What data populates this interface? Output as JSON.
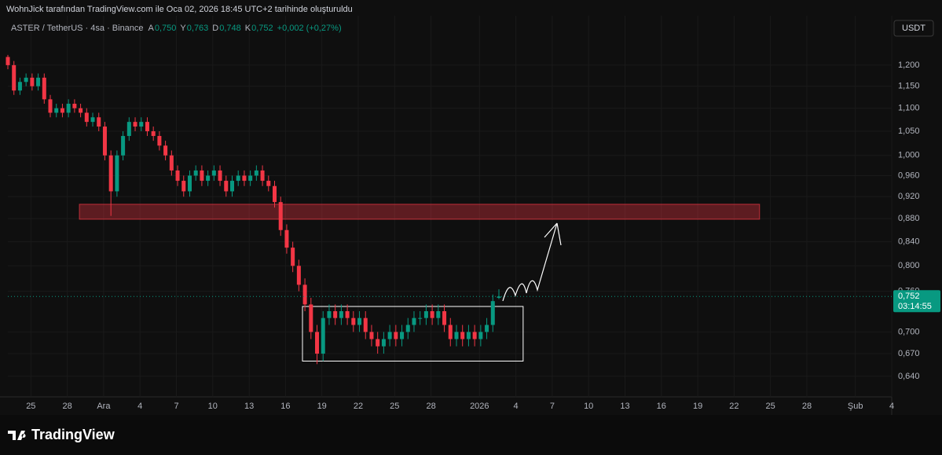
{
  "header": {
    "credit": "WohnJick tarafından TradingView.com ile Oca 02, 2026 18:45 UTC+2 tarihinde oluşturuldu",
    "symbol": "ASTER / TetherUS · 4sa · Binance",
    "ohlc": [
      {
        "key": "A",
        "value": "0,750"
      },
      {
        "key": "Y",
        "value": "0,763"
      },
      {
        "key": "D",
        "value": "0,748"
      },
      {
        "key": "K",
        "value": "0,752"
      }
    ],
    "change": "+0,002 (+0,27%)",
    "currency": "USDT",
    "price_label": "0,752",
    "countdown": "03:14:55",
    "brand": "TradingView"
  },
  "chart_data": {
    "type": "candlestick",
    "log_scale": true,
    "grid": true,
    "up_color": "#089981",
    "down_color": "#f23645",
    "x": [
      -1.9,
      -1.4,
      -0.9,
      -0.4,
      0.1,
      0.6,
      1.1,
      1.6,
      2.1,
      2.6,
      3.1,
      3.6,
      4.1,
      4.6,
      5.1,
      5.6,
      6.1,
      6.6,
      7.1,
      7.6,
      8.1,
      8.6,
      9.1,
      9.6,
      10.1,
      10.6,
      11.1,
      11.6,
      12.1,
      12.6,
      13.1,
      13.6,
      14.1,
      14.6,
      15.1,
      15.6,
      16.1,
      16.6,
      17.1,
      17.6,
      18.1,
      18.6,
      19.1,
      19.6,
      20.1,
      20.6,
      21.1,
      21.6,
      22.1,
      22.6,
      23.1,
      23.6,
      24.1,
      24.6,
      25.1,
      25.6,
      26.1,
      26.6,
      27.1,
      27.6,
      28.1,
      28.6,
      29.1,
      29.6,
      30.1,
      30.6,
      31.1,
      31.6,
      32.1,
      32.6,
      33.1,
      33.6,
      34.1,
      34.6,
      35.1,
      35.6,
      36.1,
      36.6,
      37.1,
      37.6,
      38.1,
      38.6
    ],
    "open": [
      1.22,
      1.2,
      1.14,
      1.16,
      1.17,
      1.15,
      1.17,
      1.12,
      1.09,
      1.1,
      1.09,
      1.11,
      1.1,
      1.09,
      1.07,
      1.08,
      1.06,
      1.0,
      0.93,
      1.0,
      1.04,
      1.07,
      1.06,
      1.07,
      1.05,
      1.04,
      1.02,
      1.0,
      0.97,
      0.95,
      0.93,
      0.96,
      0.97,
      0.95,
      0.96,
      0.97,
      0.95,
      0.93,
      0.95,
      0.96,
      0.95,
      0.96,
      0.97,
      0.95,
      0.94,
      0.91,
      0.86,
      0.83,
      0.8,
      0.77,
      0.74,
      0.7,
      0.67,
      0.72,
      0.73,
      0.72,
      0.73,
      0.72,
      0.71,
      0.72,
      0.7,
      0.69,
      0.68,
      0.69,
      0.7,
      0.69,
      0.7,
      0.71,
      0.72,
      0.72,
      0.73,
      0.72,
      0.73,
      0.71,
      0.69,
      0.7,
      0.69,
      0.7,
      0.69,
      0.7,
      0.71,
      0.75
    ],
    "high": [
      1.225,
      1.21,
      1.17,
      1.18,
      1.18,
      1.18,
      1.18,
      1.13,
      1.11,
      1.11,
      1.12,
      1.12,
      1.11,
      1.1,
      1.09,
      1.09,
      1.07,
      1.01,
      1.01,
      1.05,
      1.08,
      1.08,
      1.08,
      1.08,
      1.06,
      1.05,
      1.03,
      1.01,
      0.98,
      0.96,
      0.97,
      0.98,
      0.98,
      0.97,
      0.98,
      0.98,
      0.96,
      0.96,
      0.97,
      0.97,
      0.97,
      0.98,
      0.98,
      0.96,
      0.95,
      0.92,
      0.87,
      0.84,
      0.81,
      0.78,
      0.75,
      0.71,
      0.73,
      0.74,
      0.74,
      0.74,
      0.74,
      0.73,
      0.73,
      0.73,
      0.71,
      0.7,
      0.7,
      0.71,
      0.71,
      0.71,
      0.72,
      0.73,
      0.73,
      0.74,
      0.74,
      0.74,
      0.74,
      0.72,
      0.71,
      0.71,
      0.71,
      0.71,
      0.71,
      0.72,
      0.755,
      0.763
    ],
    "low": [
      1.19,
      1.13,
      1.13,
      1.15,
      1.14,
      1.14,
      1.11,
      1.08,
      1.08,
      1.08,
      1.08,
      1.09,
      1.08,
      1.06,
      1.06,
      1.05,
      0.99,
      0.885,
      0.92,
      0.99,
      1.03,
      1.05,
      1.05,
      1.04,
      1.03,
      1.01,
      0.99,
      0.96,
      0.94,
      0.92,
      0.92,
      0.95,
      0.94,
      0.94,
      0.95,
      0.94,
      0.92,
      0.92,
      0.94,
      0.94,
      0.94,
      0.95,
      0.94,
      0.93,
      0.9,
      0.85,
      0.82,
      0.79,
      0.76,
      0.73,
      0.69,
      0.656,
      0.66,
      0.71,
      0.71,
      0.71,
      0.71,
      0.7,
      0.7,
      0.69,
      0.68,
      0.67,
      0.67,
      0.68,
      0.68,
      0.68,
      0.69,
      0.7,
      0.71,
      0.71,
      0.71,
      0.71,
      0.7,
      0.68,
      0.68,
      0.68,
      0.68,
      0.68,
      0.68,
      0.69,
      0.7,
      0.748
    ],
    "close": [
      1.2,
      1.14,
      1.16,
      1.17,
      1.15,
      1.17,
      1.12,
      1.09,
      1.1,
      1.09,
      1.11,
      1.1,
      1.09,
      1.07,
      1.08,
      1.06,
      1.0,
      0.93,
      1.0,
      1.04,
      1.07,
      1.06,
      1.07,
      1.05,
      1.04,
      1.02,
      1.0,
      0.97,
      0.95,
      0.93,
      0.96,
      0.97,
      0.95,
      0.96,
      0.97,
      0.95,
      0.93,
      0.95,
      0.96,
      0.95,
      0.96,
      0.97,
      0.95,
      0.94,
      0.91,
      0.86,
      0.83,
      0.8,
      0.77,
      0.74,
      0.7,
      0.67,
      0.72,
      0.73,
      0.72,
      0.73,
      0.72,
      0.71,
      0.72,
      0.7,
      0.69,
      0.68,
      0.69,
      0.7,
      0.69,
      0.7,
      0.71,
      0.72,
      0.72,
      0.73,
      0.72,
      0.73,
      0.71,
      0.69,
      0.7,
      0.69,
      0.7,
      0.69,
      0.7,
      0.71,
      0.745,
      0.752
    ],
    "last_price": 0.752,
    "zones": [
      {
        "x": [
          4.0,
          60.1
        ],
        "y": [
          0.879,
          0.906
        ],
        "color": "#f23645"
      },
      {
        "x": [
          22.4,
          40.6
        ],
        "y": [
          0.66,
          0.737
        ],
        "color": "#ffffff"
      }
    ],
    "xlim": [
      -1.9,
      71.0
    ],
    "ylim": [
      0.614,
      1.326
    ],
    "xticks": [
      {
        "value": 0,
        "label": "25"
      },
      {
        "value": 3,
        "label": "28"
      },
      {
        "value": 6,
        "label": "Ara"
      },
      {
        "value": 9,
        "label": "4"
      },
      {
        "value": 12,
        "label": "7"
      },
      {
        "value": 15,
        "label": "10"
      },
      {
        "value": 18,
        "label": "13"
      },
      {
        "value": 21,
        "label": "16"
      },
      {
        "value": 24,
        "label": "19"
      },
      {
        "value": 27,
        "label": "22"
      },
      {
        "value": 30,
        "label": "25"
      },
      {
        "value": 33,
        "label": "28"
      },
      {
        "value": 37,
        "label": "2026"
      },
      {
        "value": 40,
        "label": "4"
      },
      {
        "value": 43,
        "label": "7"
      },
      {
        "value": 46,
        "label": "10"
      },
      {
        "value": 49,
        "label": "13"
      },
      {
        "value": 52,
        "label": "16"
      },
      {
        "value": 55,
        "label": "19"
      },
      {
        "value": 58,
        "label": "22"
      },
      {
        "value": 61,
        "label": "25"
      },
      {
        "value": 64,
        "label": "28"
      },
      {
        "value": 68,
        "label": "Şub"
      },
      {
        "value": 71,
        "label": "4"
      }
    ],
    "yticks": [
      {
        "value": 1.2,
        "label": "1,200"
      },
      {
        "value": 1.15,
        "label": "1,150"
      },
      {
        "value": 1.1,
        "label": "1,100"
      },
      {
        "value": 1.05,
        "label": "1,050"
      },
      {
        "value": 1.0,
        "label": "1,000"
      },
      {
        "value": 0.96,
        "label": "0,960"
      },
      {
        "value": 0.92,
        "label": "0,920"
      },
      {
        "value": 0.88,
        "label": "0,880"
      },
      {
        "value": 0.84,
        "label": "0,840"
      },
      {
        "value": 0.8,
        "label": "0,800"
      },
      {
        "value": 0.76,
        "label": "0,760"
      },
      {
        "value": 0.7,
        "label": "0,700"
      },
      {
        "value": 0.67,
        "label": "0,670"
      },
      {
        "value": 0.64,
        "label": "0,640"
      }
    ]
  }
}
